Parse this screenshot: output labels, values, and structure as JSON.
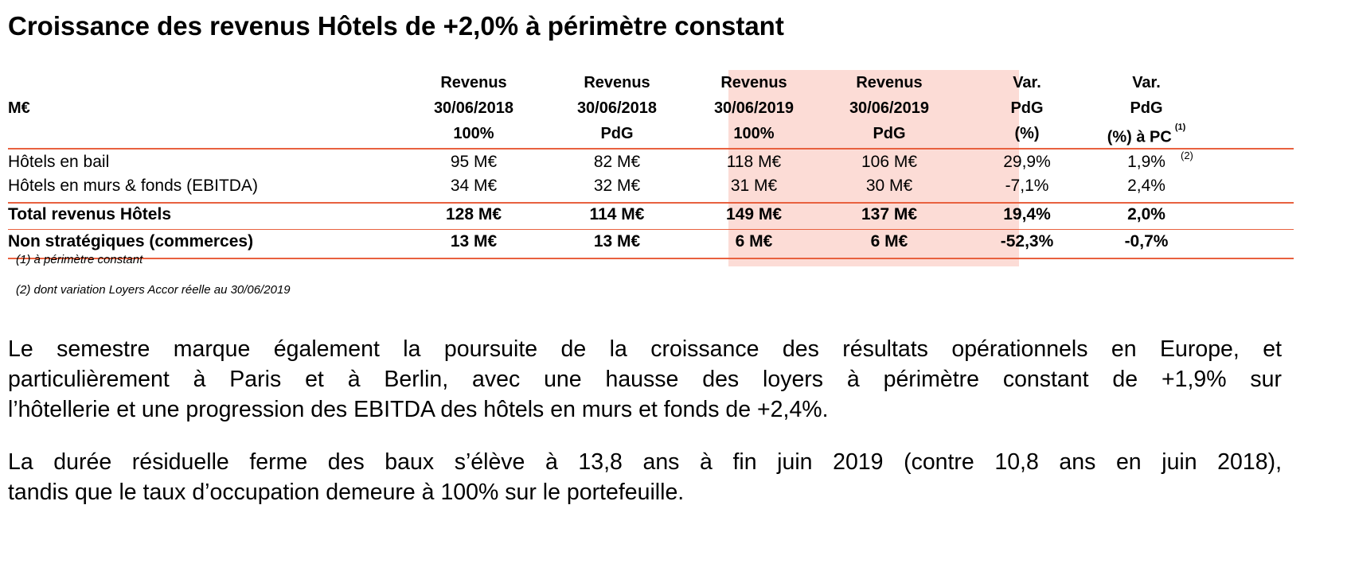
{
  "title": "Croissance des revenus Hôtels de +2,0% à périmètre constant",
  "table": {
    "corner_label": "M€",
    "columns": [
      {
        "line1": "Revenus",
        "line2": "30/06/2018",
        "line3": "100%"
      },
      {
        "line1": "Revenus",
        "line2": "30/06/2018",
        "line3": "PdG"
      },
      {
        "line1": "Revenus",
        "line2": "30/06/2019",
        "line3": "100%"
      },
      {
        "line1": "Revenus",
        "line2": "30/06/2019",
        "line3": "PdG"
      },
      {
        "line1": "Var.",
        "line2": "PdG",
        "line3": "(%)"
      },
      {
        "line1": "Var.",
        "line2": "PdG",
        "line3": "(%) à PC",
        "note": "(1)"
      }
    ],
    "rows": [
      {
        "label": "Hôtels en bail",
        "values": [
          "95 M€",
          "82 M€",
          "118 M€",
          "106 M€",
          "29,9%",
          "1,9%"
        ],
        "note": "(2)"
      },
      {
        "label": "Hôtels en murs & fonds (EBITDA)",
        "values": [
          "34 M€",
          "32 M€",
          "31 M€",
          "30 M€",
          "-7,1%",
          "2,4%"
        ]
      },
      {
        "label": "Total revenus Hôtels",
        "values": [
          "128 M€",
          "114 M€",
          "149 M€",
          "137 M€",
          "19,4%",
          "2,0%"
        ]
      },
      {
        "label": "Non stratégiques (commerces)",
        "values": [
          "13 M€",
          "13 M€",
          "6 M€",
          "6 M€",
          "-52,3%",
          "-0,7%"
        ]
      }
    ],
    "highlight_color": "#fcdcd6",
    "rule_color": "#e8613f"
  },
  "footnotes": [
    "(1) à périmètre constant",
    "(2)  dont variation Loyers Accor réelle au 30/06/2019"
  ],
  "paragraphs": [
    {
      "lines": [
        "Le semestre marque également la poursuite de la croissance des résultats opérationnels en Europe, et",
        "particulièrement à Paris et à Berlin, avec une hausse des loyers à périmètre constant de +1,9% sur",
        "l’hôtellerie et une progression des EBITDA des hôtels en murs et fonds de +2,4%."
      ]
    },
    {
      "lines": [
        "La durée résiduelle ferme des baux s’élève à 13,8 ans à fin juin 2019 (contre 10,8 ans en juin 2018),",
        "tandis que le taux d’occupation demeure à 100% sur le portefeuille."
      ]
    }
  ]
}
